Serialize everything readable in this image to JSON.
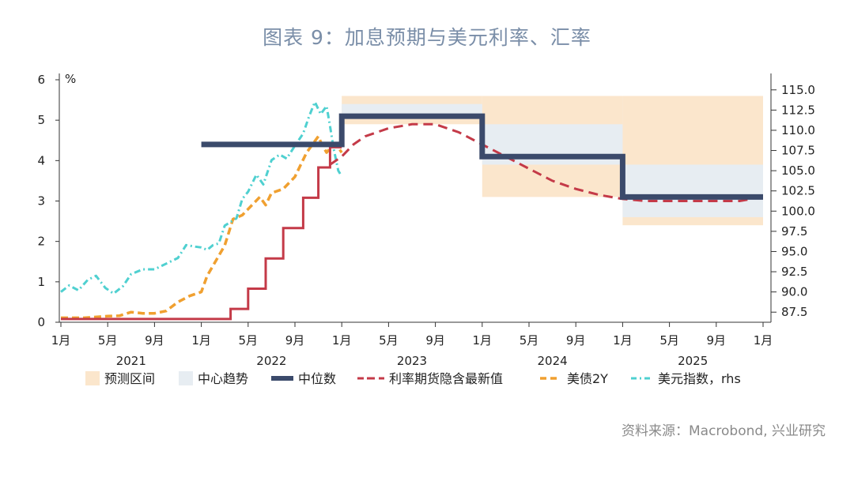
{
  "title": "图表 9：加息预期与美元利率、汇率",
  "source": "资料来源：Macrobond, 兴业研究",
  "chart_data": {
    "type": "line",
    "y_left": {
      "unit_label": "%",
      "range": [
        0,
        6
      ],
      "ticks": [
        "0",
        "1",
        "2",
        "3",
        "4",
        "5",
        "6"
      ]
    },
    "y_right": {
      "range": [
        86.25,
        116.25
      ],
      "ticks": [
        "87.5",
        "90.0",
        "92.5",
        "95.0",
        "97.5",
        "100.0",
        "102.5",
        "105.0",
        "107.5",
        "110.0",
        "112.5",
        "115.0"
      ]
    },
    "x_ticks": [
      {
        "t": 0,
        "label": "1月"
      },
      {
        "t": 4,
        "label": "5月"
      },
      {
        "t": 8,
        "label": "9月"
      },
      {
        "t": 12,
        "label": "1月"
      },
      {
        "t": 16,
        "label": "5月"
      },
      {
        "t": 20,
        "label": "9月"
      },
      {
        "t": 24,
        "label": "1月"
      },
      {
        "t": 28,
        "label": "5月"
      },
      {
        "t": 32,
        "label": "9月"
      },
      {
        "t": 36,
        "label": "1月"
      },
      {
        "t": 40,
        "label": "5月"
      },
      {
        "t": 44,
        "label": "9月"
      },
      {
        "t": 48,
        "label": "1月"
      },
      {
        "t": 52,
        "label": "5月"
      },
      {
        "t": 56,
        "label": "9月"
      },
      {
        "t": 60,
        "label": "1月"
      }
    ],
    "years": [
      {
        "t": 6,
        "label": "2021"
      },
      {
        "t": 18,
        "label": "2022"
      },
      {
        "t": 30,
        "label": "2023"
      },
      {
        "t": 42,
        "label": "2024"
      },
      {
        "t": 54,
        "label": "2025"
      }
    ],
    "forecast_range": [
      {
        "x0": 24,
        "x1": 36,
        "low": 4.9,
        "high": 5.6
      },
      {
        "x0": 36,
        "x1": 48,
        "low": 3.1,
        "high": 5.6
      },
      {
        "x0": 48,
        "x1": 60,
        "low": 2.4,
        "high": 5.6
      }
    ],
    "central_tendency": [
      {
        "x0": 24,
        "x1": 36,
        "low": 5.1,
        "high": 5.4
      },
      {
        "x0": 36,
        "x1": 48,
        "low": 3.9,
        "high": 4.9
      },
      {
        "x0": 48,
        "x1": 60,
        "low": 2.6,
        "high": 3.9
      }
    ],
    "median": [
      {
        "x0": 12,
        "x1": 24,
        "y": 4.4
      },
      {
        "x0": 24,
        "x1": 36,
        "y": 5.1
      },
      {
        "x0": 36,
        "x1": 48,
        "y": 4.1
      },
      {
        "x0": 48,
        "x1": 60,
        "y": 3.1
      }
    ],
    "fed_funds_steps": [
      [
        0,
        0.08
      ],
      [
        14.5,
        0.08
      ],
      [
        14.5,
        0.33
      ],
      [
        16,
        0.33
      ],
      [
        16,
        0.83
      ],
      [
        17.5,
        0.83
      ],
      [
        17.5,
        1.58
      ],
      [
        19,
        1.58
      ],
      [
        19,
        2.33
      ],
      [
        20.7,
        2.33
      ],
      [
        20.7,
        3.08
      ],
      [
        22,
        3.08
      ],
      [
        22,
        3.83
      ],
      [
        23,
        3.83
      ],
      [
        23,
        4.33
      ],
      [
        24,
        4.33
      ]
    ],
    "futures_implied": [
      [
        23,
        3.9
      ],
      [
        24,
        4.1
      ],
      [
        25,
        4.4
      ],
      [
        26,
        4.6
      ],
      [
        28,
        4.8
      ],
      [
        30,
        4.9
      ],
      [
        32,
        4.9
      ],
      [
        34,
        4.7
      ],
      [
        36,
        4.4
      ],
      [
        38,
        4.1
      ],
      [
        40,
        3.8
      ],
      [
        42,
        3.5
      ],
      [
        44,
        3.3
      ],
      [
        46,
        3.15
      ],
      [
        48,
        3.05
      ],
      [
        50,
        3.0
      ],
      [
        52,
        3.0
      ],
      [
        54,
        3.0
      ],
      [
        56,
        3.0
      ],
      [
        58,
        3.0
      ],
      [
        59,
        3.05
      ],
      [
        60,
        3.15
      ]
    ],
    "treasury_2y": [
      [
        0,
        0.11
      ],
      [
        2,
        0.11
      ],
      [
        4,
        0.15
      ],
      [
        5,
        0.16
      ],
      [
        6,
        0.25
      ],
      [
        7,
        0.22
      ],
      [
        8,
        0.22
      ],
      [
        9,
        0.28
      ],
      [
        10,
        0.5
      ],
      [
        11,
        0.65
      ],
      [
        12,
        0.75
      ],
      [
        12.5,
        1.15
      ],
      [
        13,
        1.4
      ],
      [
        14,
        1.9
      ],
      [
        14.7,
        2.55
      ],
      [
        15.5,
        2.65
      ],
      [
        16,
        2.8
      ],
      [
        17,
        3.1
      ],
      [
        17.5,
        2.9
      ],
      [
        18,
        3.2
      ],
      [
        19,
        3.3
      ],
      [
        20,
        3.6
      ],
      [
        20.5,
        3.9
      ],
      [
        21,
        4.2
      ],
      [
        21.5,
        4.4
      ],
      [
        22,
        4.6
      ],
      [
        22.3,
        4.4
      ],
      [
        22.7,
        4.2
      ],
      [
        23,
        4.3
      ],
      [
        23.5,
        4.4
      ],
      [
        24,
        4.2
      ]
    ],
    "dollar_index_rhs": [
      [
        0,
        90.0
      ],
      [
        0.7,
        90.8
      ],
      [
        1.5,
        90.2
      ],
      [
        2.3,
        91.5
      ],
      [
        3,
        92.0
      ],
      [
        3.8,
        90.5
      ],
      [
        4.5,
        89.8
      ],
      [
        5.3,
        90.7
      ],
      [
        6,
        92.2
      ],
      [
        7,
        92.8
      ],
      [
        8,
        92.8
      ],
      [
        9,
        93.5
      ],
      [
        10,
        94.2
      ],
      [
        10.7,
        95.8
      ],
      [
        11.5,
        95.6
      ],
      [
        12,
        95.5
      ],
      [
        12.5,
        95.2
      ],
      [
        13,
        95.8
      ],
      [
        13.5,
        96.0
      ],
      [
        14,
        98.2
      ],
      [
        15,
        99.1
      ],
      [
        15.5,
        101.5
      ],
      [
        16,
        102.4
      ],
      [
        16.7,
        104.5
      ],
      [
        17.3,
        103.3
      ],
      [
        18,
        106.3
      ],
      [
        18.7,
        107.0
      ],
      [
        19.3,
        106.5
      ],
      [
        20,
        108.1
      ],
      [
        20.7,
        109.6
      ],
      [
        21.2,
        111.7
      ],
      [
        21.7,
        113.5
      ],
      [
        22.2,
        112.0
      ],
      [
        22.7,
        113.0
      ],
      [
        23,
        110.5
      ],
      [
        23.3,
        107.8
      ],
      [
        23.7,
        105.0
      ],
      [
        24,
        104.3
      ]
    ],
    "colors": {
      "forecast_range": "#fbe6cc",
      "central_tendency": "#e7edf2",
      "median": "#3b4a6b",
      "fed_funds": "#c43a48",
      "futures": "#c43a48",
      "treasury_2y": "#f0a030",
      "dollar_index": "#4fd0d0",
      "axis": "#333333"
    },
    "legend": [
      {
        "key": "forecast_range",
        "label": "预测区间"
      },
      {
        "key": "central_tendency",
        "label": "中心趋势"
      },
      {
        "key": "median",
        "label": "中位数"
      },
      {
        "key": "futures",
        "label": "利率期货隐含最新值"
      },
      {
        "key": "treasury_2y",
        "label": "美债2Y"
      },
      {
        "key": "dollar_index",
        "label": "美元指数，rhs"
      }
    ]
  }
}
